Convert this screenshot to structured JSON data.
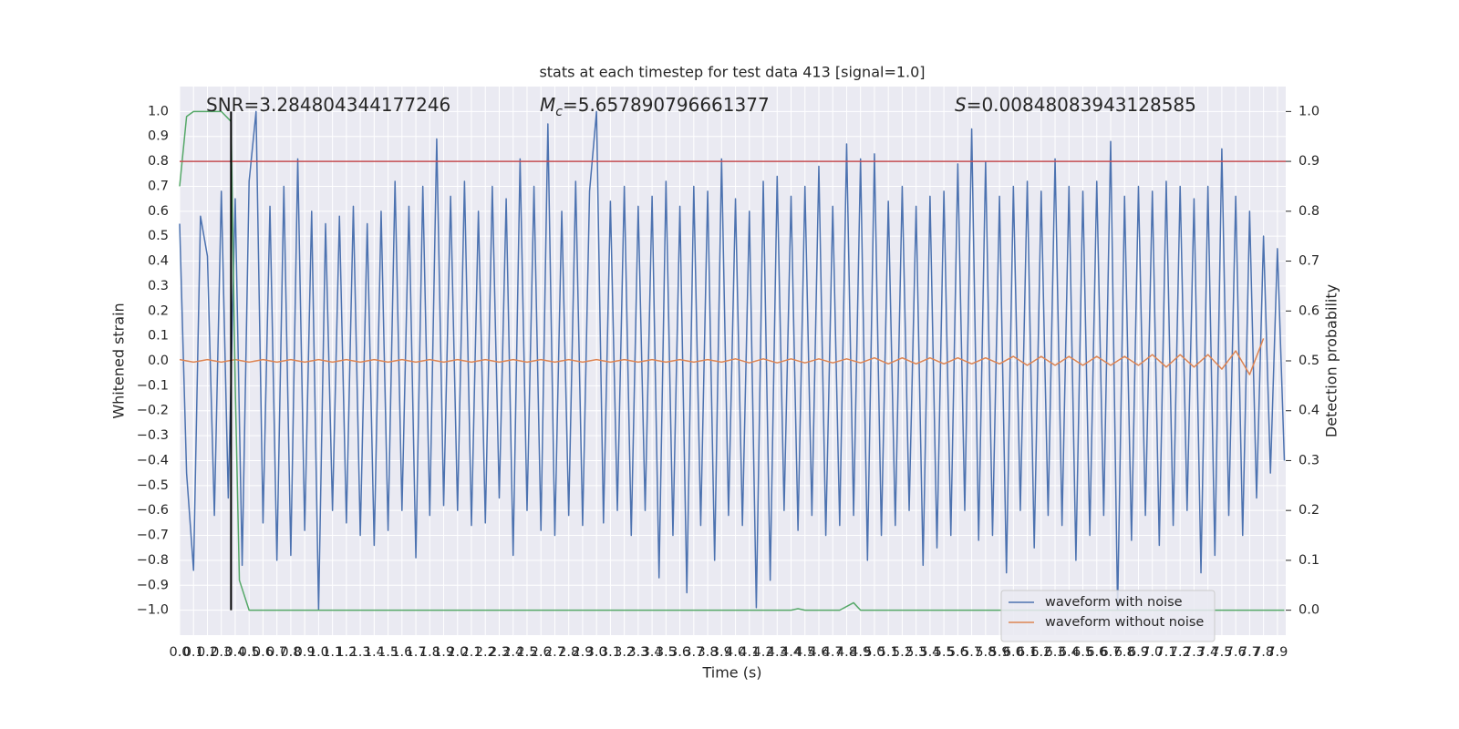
{
  "chart_data": {
    "type": "line",
    "title": "stats at each timestep for test data 413 [signal=1.0]",
    "xlabel": "Time (s)",
    "ylabel": "Whitened strain",
    "y2label": "Detection probability",
    "xlim": [
      0,
      7.96
    ],
    "ylim": [
      -1.1,
      1.1
    ],
    "y2lim": [
      -0.05,
      1.05
    ],
    "grid": true,
    "legend": "lower right",
    "xticks": [
      {
        "value": 0,
        "label": "0.0"
      },
      0.1,
      0.2,
      0.3,
      0.4,
      0.5,
      0.6,
      0.7,
      0.8,
      0.9,
      {
        "value": 1,
        "label": "1.0"
      },
      1.1,
      1.2,
      1.3,
      1.4,
      1.5,
      1.6,
      1.7,
      1.8,
      1.9,
      {
        "value": 2,
        "label": "2.0"
      },
      2.1,
      2.2,
      2.3,
      2.4,
      2.5,
      2.6,
      2.7,
      2.8,
      2.9,
      {
        "value": 3,
        "label": "3.0"
      },
      3.1,
      3.2,
      3.3,
      3.4,
      3.5,
      3.6,
      3.7,
      3.8,
      3.9,
      {
        "value": 4,
        "label": "4.0"
      },
      4.1,
      4.2,
      4.3,
      4.4,
      4.5,
      4.6,
      4.7,
      4.8,
      4.9,
      {
        "value": 5,
        "label": "5.0"
      },
      5.1,
      5.2,
      5.3,
      5.4,
      5.5,
      5.6,
      5.7,
      5.8,
      5.9,
      {
        "value": 6,
        "label": "6.0"
      },
      6.1,
      6.2,
      6.3,
      6.4,
      6.5,
      6.6,
      6.7,
      6.8,
      6.9,
      {
        "value": 7,
        "label": "7.0"
      },
      7.1,
      7.2,
      7.3,
      7.4,
      7.5,
      7.6,
      7.7,
      7.8,
      7.9
    ],
    "yticks": [
      {
        "value": -1,
        "label": "−1.0"
      },
      {
        "value": -0.9,
        "label": "−0.9"
      },
      {
        "value": -0.8,
        "label": "−0.8"
      },
      {
        "value": -0.7,
        "label": "−0.7"
      },
      {
        "value": -0.6,
        "label": "−0.6"
      },
      {
        "value": -0.5,
        "label": "−0.5"
      },
      {
        "value": -0.4,
        "label": "−0.4"
      },
      {
        "value": -0.3,
        "label": "−0.3"
      },
      {
        "value": -0.2,
        "label": "−0.2"
      },
      {
        "value": -0.1,
        "label": "−0.1"
      },
      {
        "value": 0,
        "label": "0.0"
      },
      0.1,
      0.2,
      0.3,
      0.4,
      0.5,
      0.6,
      0.7,
      0.8,
      0.9,
      {
        "value": 1,
        "label": "1.0"
      }
    ],
    "y2ticks": [
      {
        "value": 0,
        "label": "0.0"
      },
      0.1,
      0.2,
      0.3,
      0.4,
      0.5,
      0.6,
      0.7,
      0.8,
      0.9,
      {
        "value": 1,
        "label": "1.0"
      }
    ],
    "annotations": [
      {
        "text": "SNR=3.284804344177246"
      },
      {
        "symbol": "M",
        "subscript": "c",
        "text": "=5.657890796661377"
      },
      {
        "symbol": "S",
        "text": "=0.00848083943128585"
      }
    ],
    "series": [
      {
        "name": "waveform with noise",
        "color": "#4c72b0",
        "x": [
          0,
          0.05,
          0.1,
          0.15,
          0.2,
          0.25,
          0.3,
          0.35,
          0.4,
          0.45,
          0.5,
          0.55,
          0.6,
          0.65,
          0.7,
          0.75,
          0.8,
          0.85,
          0.9,
          0.95,
          1,
          1.05,
          1.1,
          1.15,
          1.2,
          1.25,
          1.3,
          1.35,
          1.4,
          1.45,
          1.5,
          1.55,
          1.6,
          1.65,
          1.7,
          1.75,
          1.8,
          1.85,
          1.9,
          1.95,
          2,
          2.05,
          2.1,
          2.15,
          2.2,
          2.25,
          2.3,
          2.35,
          2.4,
          2.45,
          2.5,
          2.55,
          2.6,
          2.65,
          2.7,
          2.75,
          2.8,
          2.85,
          2.9,
          2.95,
          3,
          3.05,
          3.1,
          3.15,
          3.2,
          3.25,
          3.3,
          3.35,
          3.4,
          3.45,
          3.5,
          3.55,
          3.6,
          3.65,
          3.7,
          3.75,
          3.8,
          3.85,
          3.9,
          3.95,
          4,
          4.05,
          4.1,
          4.15,
          4.2,
          4.25,
          4.3,
          4.35,
          4.4,
          4.45,
          4.5,
          4.55,
          4.6,
          4.65,
          4.7,
          4.75,
          4.8,
          4.85,
          4.9,
          4.95,
          5,
          5.05,
          5.1,
          5.15,
          5.2,
          5.25,
          5.3,
          5.35,
          5.4,
          5.45,
          5.5,
          5.55,
          5.6,
          5.65,
          5.7,
          5.75,
          5.8,
          5.85,
          5.9,
          5.95,
          6,
          6.05,
          6.1,
          6.15,
          6.2,
          6.25,
          6.3,
          6.35,
          6.4,
          6.45,
          6.5,
          6.55,
          6.6,
          6.65,
          6.7,
          6.75,
          6.8,
          6.85,
          6.9,
          6.95,
          7,
          7.05,
          7.1,
          7.15,
          7.2,
          7.25,
          7.3,
          7.35,
          7.4,
          7.45,
          7.5,
          7.55,
          7.6,
          7.65,
          7.7,
          7.75,
          7.8,
          7.85,
          7.9,
          7.95
        ],
        "values": [
          0.55,
          -0.45,
          -0.84,
          0.58,
          0.42,
          -0.62,
          0.68,
          -0.55,
          0.65,
          -0.82,
          0.72,
          1.0,
          -0.65,
          0.62,
          -0.8,
          0.7,
          -0.78,
          0.81,
          -0.68,
          0.6,
          -1.0,
          0.55,
          -0.6,
          0.58,
          -0.65,
          0.62,
          -0.7,
          0.55,
          -0.74,
          0.6,
          -0.68,
          0.72,
          -0.6,
          0.62,
          -0.79,
          0.7,
          -0.62,
          0.89,
          -0.58,
          0.66,
          -0.6,
          0.72,
          -0.66,
          0.6,
          -0.65,
          0.7,
          -0.55,
          0.65,
          -0.78,
          0.81,
          -0.6,
          0.7,
          -0.68,
          0.95,
          -0.7,
          0.6,
          -0.62,
          0.72,
          -0.66,
          0.68,
          1.0,
          -0.65,
          0.64,
          -0.6,
          0.7,
          -0.7,
          0.62,
          -0.6,
          0.66,
          -0.87,
          0.72,
          -0.7,
          0.62,
          -0.93,
          0.7,
          -0.66,
          0.68,
          -0.8,
          0.81,
          -0.62,
          0.65,
          -0.66,
          0.6,
          -0.99,
          0.72,
          -0.88,
          0.74,
          -0.6,
          0.66,
          -0.68,
          0.7,
          -0.62,
          0.78,
          -0.7,
          0.62,
          -0.66,
          0.87,
          -0.62,
          0.81,
          -0.8,
          0.83,
          -0.7,
          0.64,
          -0.66,
          0.7,
          -0.6,
          0.62,
          -0.82,
          0.66,
          -0.75,
          0.68,
          -0.7,
          0.79,
          -0.6,
          0.93,
          -0.72,
          0.8,
          -0.7,
          0.66,
          -0.85,
          0.7,
          -0.6,
          0.72,
          -0.75,
          0.68,
          -0.62,
          0.81,
          -0.66,
          0.7,
          -0.8,
          0.68,
          -0.7,
          0.72,
          -0.62,
          0.88,
          -1.0,
          0.66,
          -0.72,
          0.7,
          -0.62,
          0.68,
          -0.74,
          0.72,
          -0.66,
          0.7,
          -0.6,
          0.65,
          -0.85,
          0.7,
          -0.78,
          0.85,
          -0.62,
          0.66,
          -0.7,
          0.6,
          -0.55,
          0.5,
          -0.45,
          0.45,
          -0.4
        ]
      },
      {
        "name": "waveform without noise",
        "color": "#dd8452",
        "x": [
          0,
          0.1,
          0.2,
          0.3,
          0.4,
          0.5,
          0.6,
          0.7,
          0.8,
          0.9,
          1,
          1.1,
          1.2,
          1.3,
          1.4,
          1.5,
          1.6,
          1.7,
          1.8,
          1.9,
          2,
          2.1,
          2.2,
          2.3,
          2.4,
          2.5,
          2.6,
          2.7,
          2.8,
          2.9,
          3,
          3.1,
          3.2,
          3.3,
          3.4,
          3.5,
          3.6,
          3.7,
          3.8,
          3.9,
          4,
          4.1,
          4.2,
          4.3,
          4.4,
          4.5,
          4.6,
          4.7,
          4.8,
          4.9,
          5,
          5.1,
          5.2,
          5.3,
          5.4,
          5.5,
          5.6,
          5.7,
          5.8,
          5.9,
          6,
          6.1,
          6.2,
          6.3,
          6.4,
          6.5,
          6.6,
          6.7,
          6.8,
          6.9,
          7,
          7.1,
          7.2,
          7.3,
          7.4,
          7.5,
          7.6,
          7.7,
          7.8
        ],
        "values": [
          0.005,
          -0.005,
          0.005,
          -0.005,
          0.005,
          -0.005,
          0.005,
          -0.005,
          0.005,
          -0.005,
          0.005,
          -0.005,
          0.005,
          -0.005,
          0.005,
          -0.005,
          0.005,
          -0.005,
          0.005,
          -0.005,
          0.005,
          -0.005,
          0.005,
          -0.005,
          0.005,
          -0.005,
          0.005,
          -0.005,
          0.005,
          -0.005,
          0.005,
          -0.005,
          0.005,
          -0.005,
          0.005,
          -0.005,
          0.005,
          -0.005,
          0.005,
          -0.005,
          0.008,
          -0.008,
          0.008,
          -0.008,
          0.008,
          -0.008,
          0.008,
          -0.008,
          0.008,
          -0.008,
          0.012,
          -0.012,
          0.012,
          -0.012,
          0.012,
          -0.012,
          0.012,
          -0.012,
          0.012,
          -0.012,
          0.018,
          -0.018,
          0.018,
          -0.018,
          0.018,
          -0.018,
          0.018,
          -0.018,
          0.018,
          -0.018,
          0.025,
          -0.025,
          0.025,
          -0.025,
          0.025,
          -0.033,
          0.04,
          -0.055,
          0.09
        ]
      },
      {
        "color": "#55a868",
        "axis": "y2",
        "x": [
          0,
          0.05,
          0.1,
          0.2,
          0.3,
          0.37,
          0.4,
          0.43,
          0.5,
          4.4,
          4.45,
          4.5,
          4.75,
          4.85,
          4.9,
          4.95,
          7.95
        ],
        "values": [
          0.85,
          0.99,
          1.0,
          1.0,
          1.0,
          0.98,
          0.45,
          0.06,
          0.0,
          0.0,
          0.003,
          0.0,
          0.0,
          0.015,
          0.0,
          0.0,
          0.0
        ]
      }
    ],
    "hlines": [
      {
        "y": 0.8,
        "color": "#c44e52"
      }
    ],
    "vlines": [
      {
        "x": 0.37,
        "ymin": -1.0,
        "ymax": 1.0,
        "color": "#000000"
      }
    ]
  }
}
